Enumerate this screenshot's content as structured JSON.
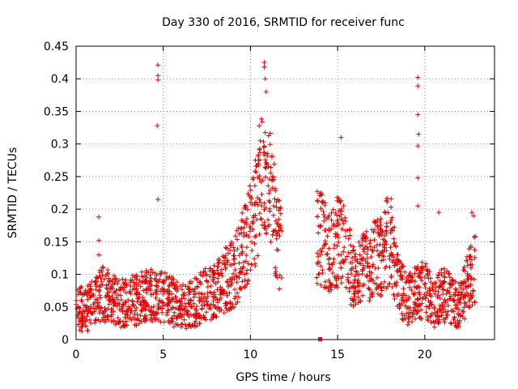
{
  "chart_data": {
    "type": "scatter",
    "title": "Day 330 of 2016, SRMTID for receiver func",
    "xlabel": "GPS time / hours",
    "ylabel": "SRMTID / TECUs",
    "xlim": [
      0,
      24
    ],
    "ylim": [
      0,
      0.45
    ],
    "xticks": [
      0,
      5,
      10,
      15,
      20
    ],
    "yticks": [
      0,
      0.05,
      0.1,
      0.15,
      0.2,
      0.25,
      0.3,
      0.35,
      0.4,
      0.45
    ],
    "ytick_labels": [
      "0",
      "0.05",
      "0.1",
      "0.15",
      "0.2",
      "0.25",
      "0.3",
      "0.35",
      "0.4",
      "0.45"
    ],
    "grid": true,
    "marker": "+",
    "color": "#e00000",
    "series": [
      {
        "name": "SRMTID",
        "trend": [
          [
            0.0,
            0.05
          ],
          [
            0.5,
            0.045
          ],
          [
            1.0,
            0.055
          ],
          [
            1.5,
            0.07
          ],
          [
            2.0,
            0.065
          ],
          [
            2.5,
            0.055
          ],
          [
            3.0,
            0.06
          ],
          [
            3.5,
            0.06
          ],
          [
            4.0,
            0.07
          ],
          [
            4.5,
            0.07
          ],
          [
            5.0,
            0.065
          ],
          [
            5.5,
            0.06
          ],
          [
            6.0,
            0.05
          ],
          [
            6.5,
            0.055
          ],
          [
            7.0,
            0.06
          ],
          [
            7.5,
            0.07
          ],
          [
            8.0,
            0.08
          ],
          [
            8.5,
            0.09
          ],
          [
            9.0,
            0.1
          ],
          [
            9.5,
            0.13
          ],
          [
            10.0,
            0.17
          ],
          [
            10.5,
            0.22
          ],
          [
            10.8,
            0.26
          ],
          [
            11.2,
            0.22
          ],
          [
            11.5,
            0.16
          ],
          [
            11.8,
            0.13
          ],
          [
            13.8,
            0.16
          ],
          [
            14.2,
            0.15
          ],
          [
            14.6,
            0.13
          ],
          [
            15.0,
            0.15
          ],
          [
            15.4,
            0.14
          ],
          [
            16.0,
            0.09
          ],
          [
            16.5,
            0.11
          ],
          [
            17.0,
            0.12
          ],
          [
            17.5,
            0.13
          ],
          [
            18.0,
            0.16
          ],
          [
            18.4,
            0.09
          ],
          [
            19.0,
            0.06
          ],
          [
            19.5,
            0.07
          ],
          [
            20.0,
            0.08
          ],
          [
            20.5,
            0.05
          ],
          [
            21.0,
            0.07
          ],
          [
            21.5,
            0.06
          ],
          [
            22.0,
            0.05
          ],
          [
            22.5,
            0.09
          ],
          [
            22.9,
            0.11
          ]
        ],
        "outliers": [
          [
            1.3,
            0.188
          ],
          [
            1.3,
            0.152
          ],
          [
            1.3,
            0.13
          ],
          [
            4.7,
            0.421
          ],
          [
            4.7,
            0.405
          ],
          [
            4.7,
            0.398
          ],
          [
            4.65,
            0.328
          ],
          [
            4.7,
            0.215
          ],
          [
            10.5,
            0.328
          ],
          [
            10.8,
            0.425
          ],
          [
            10.8,
            0.418
          ],
          [
            10.85,
            0.4
          ],
          [
            10.9,
            0.38
          ],
          [
            15.2,
            0.31
          ],
          [
            19.6,
            0.402
          ],
          [
            19.6,
            0.389
          ],
          [
            19.6,
            0.345
          ],
          [
            19.65,
            0.315
          ],
          [
            19.6,
            0.297
          ],
          [
            19.6,
            0.248
          ],
          [
            19.6,
            0.205
          ],
          [
            20.8,
            0.195
          ],
          [
            22.7,
            0.195
          ],
          [
            22.8,
            0.19
          ]
        ],
        "isolated": [
          [
            14.0,
            0.0
          ]
        ]
      }
    ]
  }
}
